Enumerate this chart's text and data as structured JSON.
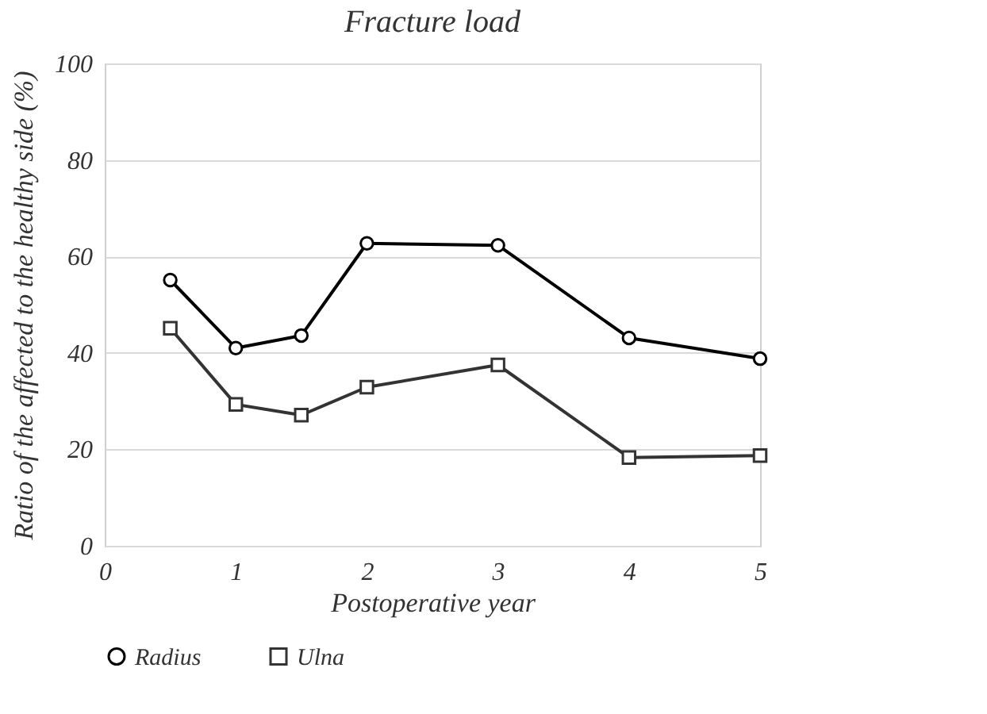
{
  "chart_data": {
    "type": "line",
    "title": "Fracture load",
    "xlabel": "Postoperative year",
    "ylabel": "Ratio of the affected to the healthy side (%)",
    "x": [
      0.5,
      1,
      1.5,
      2,
      3,
      4,
      5
    ],
    "series": [
      {
        "name": "Radius",
        "color": "#000000",
        "marker": "circle",
        "values": [
          55.1,
          41.0,
          43.6,
          62.7,
          62.3,
          43.1,
          38.8
        ]
      },
      {
        "name": "Ulna",
        "color": "#333333",
        "marker": "square",
        "values": [
          45.1,
          29.3,
          27.1,
          32.9,
          37.5,
          18.3,
          18.7
        ]
      }
    ],
    "xlim": [
      0,
      5
    ],
    "xticks": [
      0,
      1,
      2,
      3,
      4,
      5
    ],
    "ylim": [
      0,
      100
    ],
    "yticks": [
      0,
      20,
      40,
      60,
      80,
      100
    ],
    "grid": "y",
    "legend": "bottom",
    "line_style": "solid"
  }
}
